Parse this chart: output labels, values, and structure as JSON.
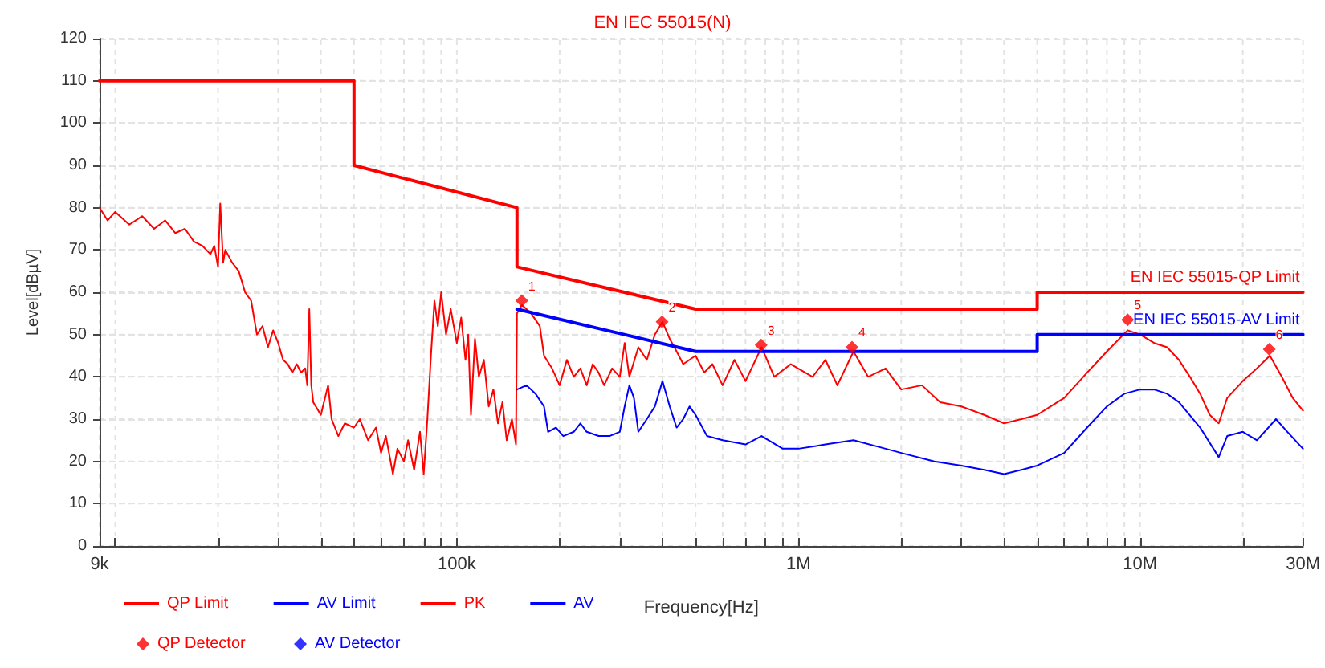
{
  "chart_data": {
    "type": "line",
    "title": "EN IEC 55015(N)",
    "xlabel": "Frequency[Hz]",
    "ylabel": "Level[dBµV]",
    "log": "x",
    "grid": true,
    "legend": "bottom left",
    "line_style": "solid",
    "xlim": [
      9000,
      30000000
    ],
    "xticks": [
      {
        "value": 9000,
        "label": "9k"
      },
      {
        "value": 10000,
        "label": null
      },
      {
        "value": 20000,
        "label": null
      },
      {
        "value": 30000,
        "label": null
      },
      {
        "value": 40000,
        "label": null
      },
      {
        "value": 50000,
        "label": null
      },
      {
        "value": 60000,
        "label": null
      },
      {
        "value": 70000,
        "label": null
      },
      {
        "value": 80000,
        "label": null
      },
      {
        "value": 90000,
        "label": null
      },
      {
        "value": 100000,
        "label": "100k"
      },
      {
        "value": 200000,
        "label": null
      },
      {
        "value": 300000,
        "label": null
      },
      {
        "value": 400000,
        "label": null
      },
      {
        "value": 500000,
        "label": null
      },
      {
        "value": 600000,
        "label": null
      },
      {
        "value": 700000,
        "label": null
      },
      {
        "value": 800000,
        "label": null
      },
      {
        "value": 900000,
        "label": null
      },
      {
        "value": 1000000,
        "label": "1M"
      },
      {
        "value": 2000000,
        "label": null
      },
      {
        "value": 3000000,
        "label": null
      },
      {
        "value": 4000000,
        "label": null
      },
      {
        "value": 5000000,
        "label": null
      },
      {
        "value": 6000000,
        "label": null
      },
      {
        "value": 7000000,
        "label": null
      },
      {
        "value": 8000000,
        "label": null
      },
      {
        "value": 9000000,
        "label": null
      },
      {
        "value": 10000000,
        "label": "10M"
      },
      {
        "value": 20000000,
        "label": null
      },
      {
        "value": 30000000,
        "label": "30M"
      }
    ],
    "ylim": [
      0,
      120
    ],
    "yticks": [
      0,
      10,
      20,
      30,
      40,
      50,
      60,
      70,
      80,
      90,
      100,
      110,
      120
    ],
    "annotations": [
      {
        "text": "EN IEC 55015-QP Limit",
        "x": 30000000,
        "y": 60
      },
      {
        "text": "EN IEC 55015-AV Limit",
        "x": 30000000,
        "y": 50
      },
      {
        "text": "1",
        "x": 155000,
        "y": 58
      },
      {
        "text": "2",
        "x": 399000,
        "y": 53
      },
      {
        "text": "3",
        "x": 778000,
        "y": 47.5
      },
      {
        "text": "4",
        "x": 1435000,
        "y": 47
      },
      {
        "text": "5",
        "x": 9200000,
        "y": 53.5
      },
      {
        "text": "6",
        "x": 23900000,
        "y": 46.5
      }
    ],
    "series": [
      {
        "name": "QP Limit",
        "color": "#ff0000",
        "marker": "none",
        "x": [
          9000,
          50000,
          50000,
          150000,
          150000,
          500000,
          5000000,
          5000000,
          30000000
        ],
        "values": [
          110,
          110,
          90,
          80,
          66,
          56,
          56,
          60,
          60
        ]
      },
      {
        "name": "AV Limit",
        "color": "#0000ff",
        "marker": "none",
        "x": [
          150000,
          500000,
          5000000,
          5000000,
          30000000
        ],
        "values": [
          56,
          46,
          46,
          50,
          50
        ]
      },
      {
        "name": "PK",
        "color": "#ff0000",
        "marker": "none",
        "x": [
          9000,
          9500,
          10000,
          11000,
          12000,
          13000,
          14000,
          15000,
          16000,
          17000,
          18000,
          19000,
          19500,
          20000,
          20300,
          20700,
          21000,
          22000,
          23000,
          24000,
          25000,
          26000,
          27000,
          28000,
          29000,
          30000,
          31000,
          32000,
          33000,
          34000,
          35000,
          36000,
          36500,
          37000,
          37500,
          38000,
          40000,
          42000,
          43000,
          45000,
          47000,
          50000,
          52000,
          55000,
          58000,
          60000,
          62000,
          65000,
          67000,
          70000,
          72000,
          75000,
          78000,
          80000,
          82000,
          84000,
          86000,
          88000,
          90000,
          93000,
          96000,
          100000,
          103000,
          106000,
          108000,
          110000,
          113000,
          116000,
          120000,
          124000,
          128000,
          132000,
          136000,
          140000,
          145000,
          149000,
          150000,
          155000,
          165000,
          175000,
          180000,
          190000,
          200000,
          210000,
          220000,
          230000,
          240000,
          250000,
          260000,
          270000,
          285000,
          300000,
          310000,
          320000,
          340000,
          360000,
          380000,
          400000,
          420000,
          440000,
          460000,
          500000,
          530000,
          560000,
          600000,
          650000,
          700000,
          780000,
          850000,
          950000,
          1100000,
          1200000,
          1300000,
          1450000,
          1600000,
          1800000,
          2000000,
          2300000,
          2600000,
          3000000,
          3500000,
          4000000,
          4500000,
          5000000,
          6000000,
          7000000,
          8000000,
          9200000,
          10000000,
          11000000,
          12000000,
          13000000,
          14000000,
          15000000,
          16000000,
          17000000,
          18000000,
          20000000,
          22000000,
          24000000,
          26000000,
          28000000,
          30000000
        ],
        "values": [
          80,
          77,
          79,
          76,
          78,
          75,
          77,
          74,
          75,
          72,
          71,
          69,
          71,
          66,
          81,
          67,
          70,
          67,
          65,
          60,
          58,
          50,
          52,
          47,
          51,
          48,
          44,
          43,
          41,
          43,
          41,
          42,
          38,
          56,
          38,
          34,
          31,
          38,
          30,
          26,
          29,
          28,
          30,
          25,
          28,
          22,
          26,
          17,
          23,
          20,
          25,
          18,
          27,
          17,
          30,
          45,
          58,
          52,
          60,
          50,
          56,
          48,
          54,
          44,
          50,
          31,
          49,
          40,
          44,
          33,
          37,
          29,
          34,
          25,
          30,
          24,
          55,
          57,
          55,
          52,
          45,
          42,
          38,
          44,
          40,
          42,
          38,
          43,
          41,
          38,
          42,
          40,
          48,
          40,
          47,
          44,
          50,
          53,
          49,
          46,
          43,
          45,
          41,
          43,
          38,
          44,
          39,
          47,
          40,
          43,
          40,
          44,
          38,
          46,
          40,
          42,
          37,
          38,
          34,
          33,
          31,
          29,
          30,
          31,
          35,
          41,
          46,
          51,
          50,
          48,
          47,
          44,
          40,
          36,
          31,
          29,
          35,
          39,
          42,
          45,
          40,
          35,
          32
        ]
      },
      {
        "name": "AV",
        "color": "#0000ff",
        "marker": "none",
        "x": [
          150000,
          160000,
          170000,
          180000,
          185000,
          195000,
          205000,
          220000,
          230000,
          240000,
          260000,
          280000,
          300000,
          310000,
          320000,
          330000,
          340000,
          360000,
          380000,
          400000,
          420000,
          440000,
          460000,
          480000,
          500000,
          540000,
          600000,
          700000,
          780000,
          900000,
          1000000,
          1200000,
          1450000,
          1800000,
          2000000,
          2500000,
          3000000,
          3500000,
          4000000,
          4500000,
          5000000,
          6000000,
          7000000,
          8000000,
          9000000,
          10000000,
          11000000,
          12000000,
          13000000,
          15000000,
          17000000,
          18000000,
          20000000,
          22000000,
          25000000,
          27000000,
          30000000
        ],
        "values": [
          37,
          38,
          36,
          33,
          27,
          28,
          26,
          27,
          29,
          27,
          26,
          26,
          27,
          33,
          38,
          35,
          27,
          30,
          33,
          39,
          33,
          28,
          30,
          33,
          31,
          26,
          25,
          24,
          26,
          23,
          23,
          24,
          25,
          23,
          22,
          20,
          19,
          18,
          17,
          18,
          19,
          22,
          28,
          33,
          36,
          37,
          37,
          36,
          34,
          28,
          21,
          26,
          27,
          25,
          30,
          27,
          23
        ]
      },
      {
        "name": "QP Detector",
        "type": "scatter",
        "color": "#ff0000",
        "marker": "diamond",
        "x": [
          155000,
          399000,
          778000,
          1435000,
          9200000,
          23900000
        ],
        "values": [
          58,
          53,
          47.5,
          47,
          53.5,
          46.5
        ]
      },
      {
        "name": "AV Detector",
        "type": "scatter",
        "color": "#0000ff",
        "marker": "diamond"
      }
    ]
  }
}
